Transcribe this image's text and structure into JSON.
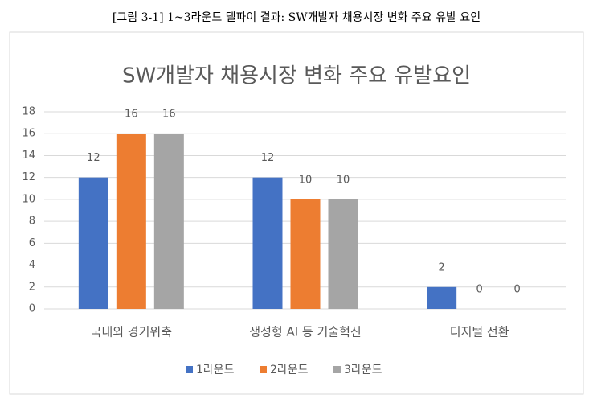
{
  "figure_caption": "[그림 3-1] 1~3라운드 델파이 결과: SW개발자 채용시장 변화 주요 유발 요인",
  "chart_data": {
    "type": "bar",
    "title": "SW개발자 채용시장 변화 주요 유발요인",
    "categories": [
      "국내외 경기위축",
      "생성형 AI 등 기술혁신",
      "디지털 전환"
    ],
    "series": [
      {
        "name": "1라운드",
        "color": "#4472c4",
        "values": [
          12,
          12,
          2
        ]
      },
      {
        "name": "2라운드",
        "color": "#ed7d31",
        "values": [
          16,
          10,
          0
        ]
      },
      {
        "name": "3라운드",
        "color": "#a5a5a5",
        "values": [
          16,
          10,
          0
        ]
      }
    ],
    "ylim": [
      0,
      18
    ],
    "yticks": [
      0,
      2,
      4,
      6,
      8,
      10,
      12,
      14,
      16,
      18
    ],
    "grid": true,
    "legend": "bottom"
  }
}
